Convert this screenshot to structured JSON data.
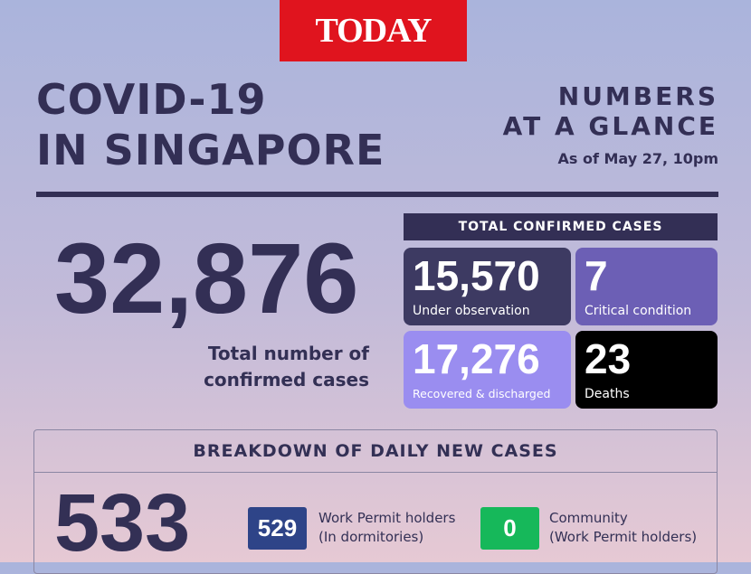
{
  "logo": "TODAY",
  "header": {
    "title_line1": "COVID-19",
    "title_line2": "IN SINGAPORE",
    "subtitle_line1": "NUMBERS",
    "subtitle_line2": "AT A GLANCE",
    "as_of": "As of May 27, 10pm"
  },
  "total": {
    "value": "32,876",
    "label_line1": "Total number of",
    "label_line2": "confirmed cases"
  },
  "confirmed": {
    "heading": "TOTAL CONFIRMED CASES",
    "boxes": [
      {
        "value": "15,570",
        "label": "Under observation"
      },
      {
        "value": "7",
        "label": "Critical condition"
      },
      {
        "value": "17,276",
        "label": "Recovered & discharged"
      },
      {
        "value": "23",
        "label": "Deaths"
      }
    ]
  },
  "daily": {
    "heading": "BREAKDOWN OF DAILY NEW CASES",
    "total": "533",
    "items": [
      {
        "value": "529",
        "label_line1": "Work Permit holders",
        "label_line2": "(In dormitories)"
      },
      {
        "value": "0",
        "label_line1": "Community",
        "label_line2": "(Work Permit holders)"
      }
    ]
  }
}
